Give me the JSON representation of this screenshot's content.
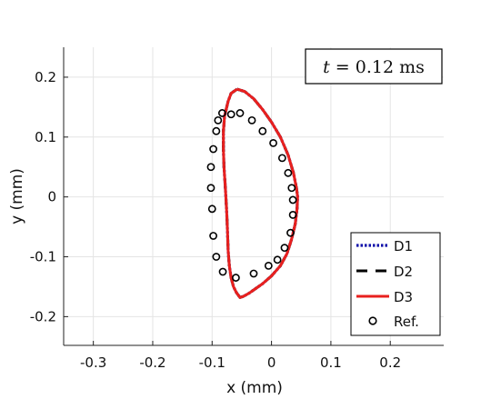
{
  "chart_data": {
    "type": "line",
    "xlabel": "x (mm)",
    "ylabel": "y (mm)",
    "xlim": [
      -0.35,
      0.29
    ],
    "ylim": [
      -0.248,
      0.25
    ],
    "xticks": [
      -0.3,
      -0.2,
      -0.1,
      0,
      0.1,
      0.2
    ],
    "xtick_labels": [
      "-0.3",
      "-0.2",
      "-0.1",
      "0",
      "0.1",
      "0.2"
    ],
    "yticks": [
      -0.2,
      -0.1,
      0,
      0.1,
      0.2
    ],
    "ytick_labels": [
      "-0.2",
      "-0.1",
      "0",
      "0.1",
      "0.2"
    ],
    "grid": true,
    "legend_position": "bottom-right",
    "annotation": {
      "t_symbol": "t",
      "text": "= 0.12 ms"
    },
    "series": [
      {
        "name": "D1",
        "style": "dotted",
        "color": "#1010aa",
        "x": [
          -0.058,
          -0.045,
          -0.03,
          -0.015,
          0.0,
          0.015,
          0.028,
          0.037,
          0.042,
          0.044,
          0.043,
          0.04,
          0.034,
          0.026,
          0.015,
          0.0,
          -0.015,
          -0.028,
          -0.038,
          -0.047,
          -0.053,
          -0.059,
          -0.064,
          -0.068,
          -0.071,
          -0.073,
          -0.074,
          -0.075,
          -0.076,
          -0.078,
          -0.08,
          -0.081,
          -0.081,
          -0.079,
          -0.073,
          -0.068,
          -0.058
        ],
        "y": [
          0.18,
          0.176,
          0.164,
          0.146,
          0.125,
          0.1,
          0.07,
          0.04,
          0.015,
          0.0,
          -0.02,
          -0.045,
          -0.07,
          -0.095,
          -0.115,
          -0.132,
          -0.145,
          -0.154,
          -0.161,
          -0.166,
          -0.168,
          -0.16,
          -0.15,
          -0.135,
          -0.115,
          -0.09,
          -0.06,
          -0.035,
          -0.015,
          0.02,
          0.05,
          0.08,
          0.11,
          0.135,
          0.16,
          0.173,
          0.18
        ]
      },
      {
        "name": "D2",
        "style": "dashed",
        "color": "#000000",
        "x": [
          -0.058,
          -0.045,
          -0.03,
          -0.015,
          0.0,
          0.015,
          0.028,
          0.037,
          0.042,
          0.044,
          0.043,
          0.04,
          0.034,
          0.026,
          0.015,
          0.0,
          -0.015,
          -0.028,
          -0.038,
          -0.047,
          -0.053,
          -0.059,
          -0.064,
          -0.068,
          -0.071,
          -0.073,
          -0.074,
          -0.075,
          -0.076,
          -0.078,
          -0.08,
          -0.081,
          -0.081,
          -0.079,
          -0.073,
          -0.068,
          -0.058
        ],
        "y": [
          0.18,
          0.176,
          0.164,
          0.146,
          0.125,
          0.1,
          0.07,
          0.04,
          0.015,
          0.0,
          -0.02,
          -0.045,
          -0.07,
          -0.095,
          -0.115,
          -0.132,
          -0.145,
          -0.154,
          -0.161,
          -0.166,
          -0.168,
          -0.16,
          -0.15,
          -0.135,
          -0.115,
          -0.09,
          -0.06,
          -0.035,
          -0.015,
          0.02,
          0.05,
          0.08,
          0.11,
          0.135,
          0.16,
          0.173,
          0.18
        ]
      },
      {
        "name": "D3",
        "style": "solid",
        "color": "#e8201e",
        "x": [
          -0.058,
          -0.045,
          -0.03,
          -0.015,
          0.0,
          0.015,
          0.028,
          0.037,
          0.042,
          0.044,
          0.043,
          0.04,
          0.034,
          0.026,
          0.015,
          0.0,
          -0.015,
          -0.028,
          -0.038,
          -0.047,
          -0.053,
          -0.059,
          -0.064,
          -0.068,
          -0.071,
          -0.073,
          -0.074,
          -0.075,
          -0.076,
          -0.078,
          -0.08,
          -0.081,
          -0.081,
          -0.079,
          -0.073,
          -0.068,
          -0.058
        ],
        "y": [
          0.18,
          0.176,
          0.164,
          0.146,
          0.125,
          0.1,
          0.07,
          0.04,
          0.015,
          0.0,
          -0.02,
          -0.045,
          -0.07,
          -0.095,
          -0.115,
          -0.132,
          -0.145,
          -0.154,
          -0.161,
          -0.166,
          -0.168,
          -0.16,
          -0.15,
          -0.135,
          -0.115,
          -0.09,
          -0.06,
          -0.035,
          -0.015,
          0.02,
          0.05,
          0.08,
          0.11,
          0.135,
          0.16,
          0.173,
          0.18
        ]
      },
      {
        "name": "Ref.",
        "style": "markers",
        "color": "#000000",
        "x": [
          -0.068,
          -0.053,
          -0.033,
          -0.015,
          0.003,
          0.018,
          0.028,
          0.034,
          0.036,
          0.036,
          0.032,
          0.022,
          0.01,
          -0.005,
          -0.03,
          -0.06,
          -0.082,
          -0.093,
          -0.098,
          -0.1,
          -0.102,
          -0.102,
          -0.098,
          -0.093,
          -0.09,
          -0.083
        ],
        "y": [
          0.138,
          0.14,
          0.128,
          0.11,
          0.09,
          0.065,
          0.04,
          0.015,
          -0.005,
          -0.03,
          -0.06,
          -0.085,
          -0.105,
          -0.115,
          -0.128,
          -0.135,
          -0.125,
          -0.1,
          -0.065,
          -0.02,
          0.015,
          0.05,
          0.08,
          0.11,
          0.128,
          0.14
        ]
      }
    ]
  }
}
